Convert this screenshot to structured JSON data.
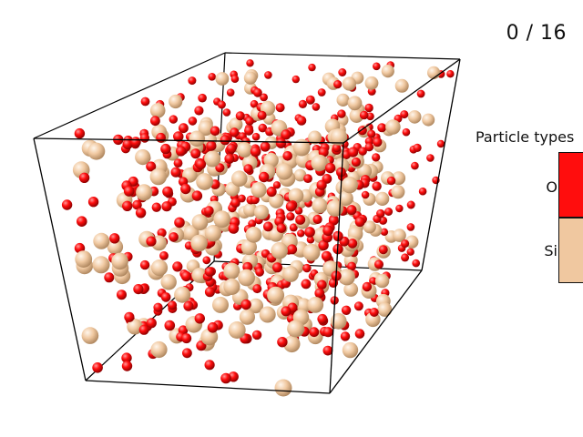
{
  "frame_counter": "0 / 16",
  "legend": {
    "title": "Particle types",
    "items": [
      {
        "label": "O",
        "color": "#ff0d0d"
      },
      {
        "label": "Si",
        "color": "#f0c8a0"
      }
    ]
  },
  "particle_colors": {
    "O": {
      "fill": "#ff0d0d",
      "highlight": "#ff9a9a",
      "shade": "#8a0000"
    },
    "Si": {
      "fill": "#f0c8a0",
      "highlight": "#fff6ec",
      "shade": "#b08860"
    }
  }
}
